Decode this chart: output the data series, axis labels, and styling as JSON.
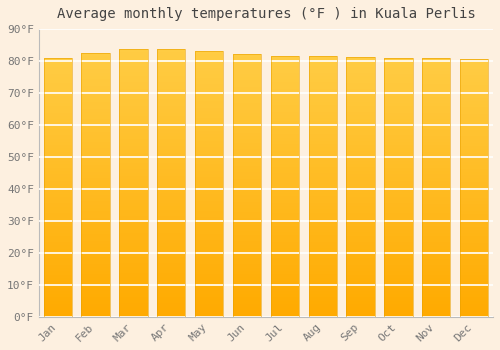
{
  "title": "Average monthly temperatures (°F ) in Kuala Perlis",
  "months": [
    "Jan",
    "Feb",
    "Mar",
    "Apr",
    "May",
    "Jun",
    "Jul",
    "Aug",
    "Sep",
    "Oct",
    "Nov",
    "Dec"
  ],
  "values": [
    81.1,
    82.6,
    83.8,
    83.8,
    83.1,
    82.2,
    81.5,
    81.5,
    81.3,
    81.1,
    81.0,
    80.6
  ],
  "ylim": [
    0,
    90
  ],
  "yticks": [
    0,
    10,
    20,
    30,
    40,
    50,
    60,
    70,
    80,
    90
  ],
  "bar_color_top": "#FFCC44",
  "bar_color_bottom": "#FFAA00",
  "bar_edge_color": "#E8A000",
  "background_color": "#fdf0e0",
  "plot_bg_color": "#fdf0e0",
  "grid_color": "#ffffff",
  "title_fontsize": 10,
  "tick_fontsize": 8,
  "font_family": "monospace",
  "bar_width": 0.75,
  "gradient_steps": 80
}
